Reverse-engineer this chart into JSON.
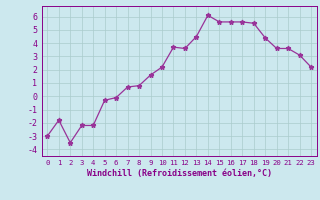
{
  "x": [
    0,
    1,
    2,
    3,
    4,
    5,
    6,
    7,
    8,
    9,
    10,
    11,
    12,
    13,
    14,
    15,
    16,
    17,
    18,
    19,
    20,
    21,
    22,
    23
  ],
  "y": [
    -3.0,
    -1.8,
    -3.5,
    -2.2,
    -2.2,
    -0.3,
    -0.1,
    0.7,
    0.8,
    1.6,
    2.2,
    3.7,
    3.6,
    4.5,
    6.1,
    5.6,
    5.6,
    5.6,
    5.5,
    4.4,
    3.6,
    3.6,
    3.1,
    2.2
  ],
  "line_color": "#993399",
  "marker": "*",
  "marker_size": 3.5,
  "background_color": "#cce8ee",
  "grid_color": "#aacccc",
  "xlabel": "Windchill (Refroidissement éolien,°C)",
  "ylabel": "",
  "xlim": [
    -0.5,
    23.5
  ],
  "ylim": [
    -4.5,
    6.8
  ],
  "yticks": [
    -4,
    -3,
    -2,
    -1,
    0,
    1,
    2,
    3,
    4,
    5,
    6
  ],
  "xticks": [
    0,
    1,
    2,
    3,
    4,
    5,
    6,
    7,
    8,
    9,
    10,
    11,
    12,
    13,
    14,
    15,
    16,
    17,
    18,
    19,
    20,
    21,
    22,
    23
  ],
  "tick_color": "#880088",
  "tick_fontsize": 5.2,
  "xlabel_fontsize": 6.0,
  "line_width": 0.9
}
